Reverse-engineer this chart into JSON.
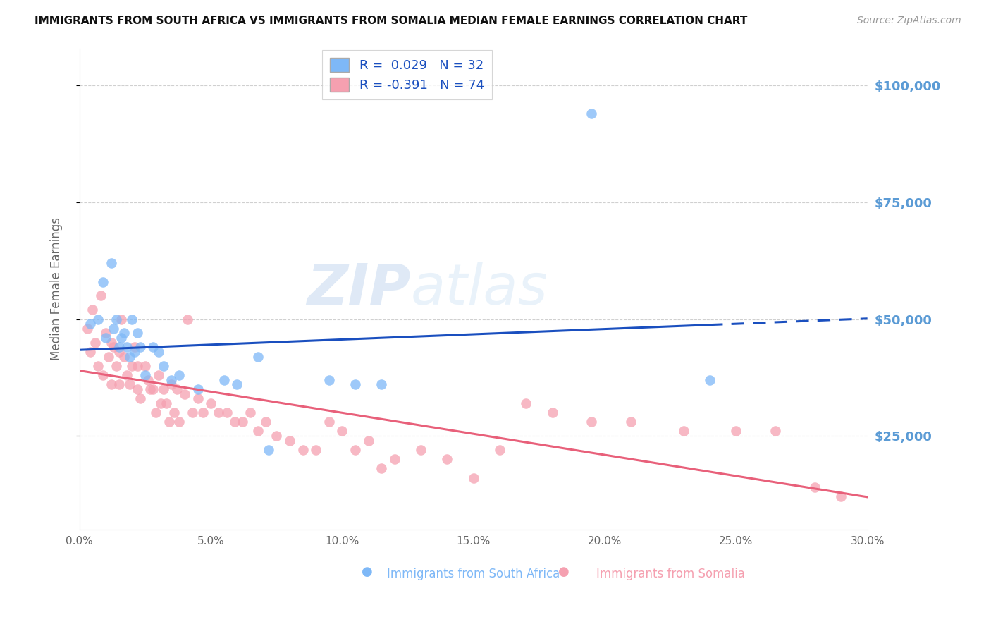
{
  "title": "IMMIGRANTS FROM SOUTH AFRICA VS IMMIGRANTS FROM SOMALIA MEDIAN FEMALE EARNINGS CORRELATION CHART",
  "source": "Source: ZipAtlas.com",
  "ylabel": "Median Female Earnings",
  "xlabel_ticks": [
    "0.0%",
    "5.0%",
    "10.0%",
    "15.0%",
    "20.0%",
    "25.0%",
    "30.0%"
  ],
  "xlabel_vals": [
    0.0,
    0.05,
    0.1,
    0.15,
    0.2,
    0.25,
    0.3
  ],
  "ytick_labels": [
    "$25,000",
    "$50,000",
    "$75,000",
    "$100,000"
  ],
  "ytick_vals": [
    25000,
    50000,
    75000,
    100000
  ],
  "xlim": [
    0.0,
    0.3
  ],
  "ylim": [
    5000,
    108000
  ],
  "south_africa_color": "#7eb8f7",
  "somalia_color": "#f5a0b0",
  "south_africa_line_color": "#1a4fbf",
  "somalia_line_color": "#e8607a",
  "legend_R_sa": "R =  0.029",
  "legend_N_sa": "N = 32",
  "legend_R_so": "R = -0.391",
  "legend_N_so": "N = 74",
  "watermark_zip": "ZIP",
  "watermark_atlas": "atlas",
  "background_color": "#ffffff",
  "grid_color": "#d0d0d0",
  "right_tick_color": "#5b9bd5",
  "south_africa_x": [
    0.004,
    0.007,
    0.009,
    0.01,
    0.012,
    0.013,
    0.014,
    0.015,
    0.016,
    0.017,
    0.018,
    0.019,
    0.02,
    0.021,
    0.022,
    0.023,
    0.025,
    0.028,
    0.03,
    0.032,
    0.035,
    0.038,
    0.045,
    0.055,
    0.06,
    0.068,
    0.072,
    0.095,
    0.105,
    0.115,
    0.195,
    0.24
  ],
  "south_africa_y": [
    49000,
    50000,
    58000,
    46000,
    62000,
    48000,
    50000,
    44000,
    46000,
    47000,
    44000,
    42000,
    50000,
    43000,
    47000,
    44000,
    38000,
    44000,
    43000,
    40000,
    37000,
    38000,
    35000,
    37000,
    36000,
    42000,
    22000,
    37000,
    36000,
    36000,
    94000,
    37000
  ],
  "somalia_x": [
    0.003,
    0.004,
    0.005,
    0.006,
    0.007,
    0.008,
    0.009,
    0.01,
    0.011,
    0.012,
    0.012,
    0.013,
    0.014,
    0.015,
    0.015,
    0.016,
    0.017,
    0.018,
    0.019,
    0.02,
    0.021,
    0.022,
    0.022,
    0.023,
    0.025,
    0.026,
    0.027,
    0.028,
    0.029,
    0.03,
    0.031,
    0.032,
    0.033,
    0.034,
    0.035,
    0.036,
    0.037,
    0.038,
    0.04,
    0.041,
    0.043,
    0.045,
    0.047,
    0.05,
    0.053,
    0.056,
    0.059,
    0.062,
    0.065,
    0.068,
    0.071,
    0.075,
    0.08,
    0.085,
    0.09,
    0.095,
    0.1,
    0.105,
    0.11,
    0.115,
    0.12,
    0.13,
    0.14,
    0.15,
    0.16,
    0.17,
    0.18,
    0.195,
    0.21,
    0.23,
    0.25,
    0.265,
    0.28,
    0.29
  ],
  "somalia_y": [
    48000,
    43000,
    52000,
    45000,
    40000,
    55000,
    38000,
    47000,
    42000,
    45000,
    36000,
    44000,
    40000,
    43000,
    36000,
    50000,
    42000,
    38000,
    36000,
    40000,
    44000,
    35000,
    40000,
    33000,
    40000,
    37000,
    35000,
    35000,
    30000,
    38000,
    32000,
    35000,
    32000,
    28000,
    36000,
    30000,
    35000,
    28000,
    34000,
    50000,
    30000,
    33000,
    30000,
    32000,
    30000,
    30000,
    28000,
    28000,
    30000,
    26000,
    28000,
    25000,
    24000,
    22000,
    22000,
    28000,
    26000,
    22000,
    24000,
    18000,
    20000,
    22000,
    20000,
    16000,
    22000,
    32000,
    30000,
    28000,
    28000,
    26000,
    26000,
    26000,
    14000,
    12000
  ]
}
